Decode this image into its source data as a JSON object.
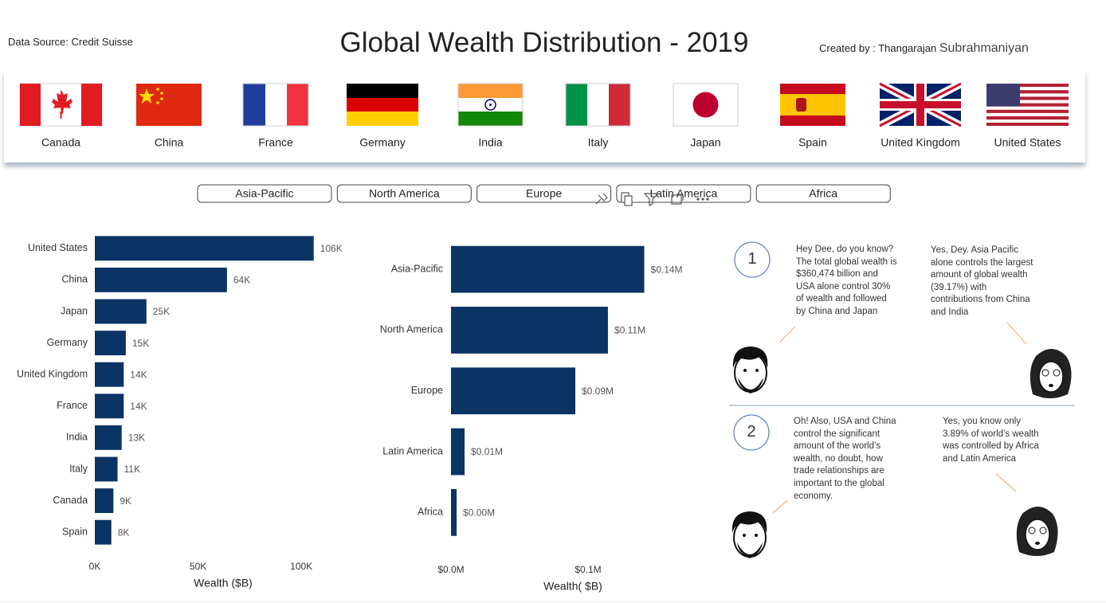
{
  "header": {
    "source": "Data Source: Credit Suisse",
    "title": "Global Wealth Distribution - 2019",
    "credit": "Created by : Thangarajan",
    "credit_name": "Subrahmaniyan"
  },
  "flags": [
    "Canada",
    "China",
    "France",
    "Germany",
    "India",
    "Italy",
    "Japan",
    "Spain",
    "United Kingdom",
    "United States"
  ],
  "region_buttons": [
    "Asia-Pacific",
    "North America",
    "Europe",
    "Latin America",
    "Africa"
  ],
  "chart_data": [
    {
      "type": "bar",
      "orientation": "horizontal",
      "x_label": "Wealth ($B)",
      "categories": [
        "United States",
        "China",
        "Japan",
        "Germany",
        "United Kingdom",
        "France",
        "India",
        "Italy",
        "Canada",
        "Spain"
      ],
      "values": [
        106000,
        64000,
        25000,
        15000,
        14000,
        14000,
        13000,
        11000,
        9000,
        8000
      ],
      "value_labels": [
        "106K",
        "64K",
        "25K",
        "15K",
        "14K",
        "14K",
        "13K",
        "11K",
        "9K",
        "8K"
      ],
      "color": "#0b3364",
      "xlim": [
        0,
        120000
      ],
      "xticks": [
        {
          "value": 0,
          "label": "0K"
        },
        {
          "value": 50000,
          "label": "50K"
        },
        {
          "value": 100000,
          "label": "100K"
        }
      ],
      "grid": false
    },
    {
      "type": "bar",
      "orientation": "horizontal",
      "x_label": "Wealth( $B)",
      "categories": [
        "Asia-Pacific",
        "North America",
        "Europe",
        "Latin America",
        "Africa"
      ],
      "values": [
        141000,
        114500,
        90700,
        9900,
        4100
      ],
      "value_labels": [
        "$0.14M",
        "$0.11M",
        "$0.09M",
        "$0.01M",
        "$0.00M"
      ],
      "color": "#0b3364",
      "xlim": [
        0,
        170000
      ],
      "xticks": [
        {
          "value": 0,
          "label": "$0.0M"
        },
        {
          "value": 100000,
          "label": "$0.1M"
        }
      ],
      "grid": false
    }
  ],
  "comic": {
    "panels": [
      {
        "number": "1",
        "left": "Hey Dee, do you know? The total global wealth is $360,474 billion and USA alone control 30% of wealth and followed by China and Japan",
        "right": "Yes, Dey. Asia Pacific alone controls the largest amount of global wealth (39.17%) with contributions from China and India"
      },
      {
        "number": "2",
        "left": "Oh! Also, USA and China control the significant amount of the world’s wealth, no doubt, how trade relationships are important to the global economy.",
        "right": "Yes, you know only 3.89% of world’s wealth was controlled by Africa and Latin America"
      }
    ]
  }
}
